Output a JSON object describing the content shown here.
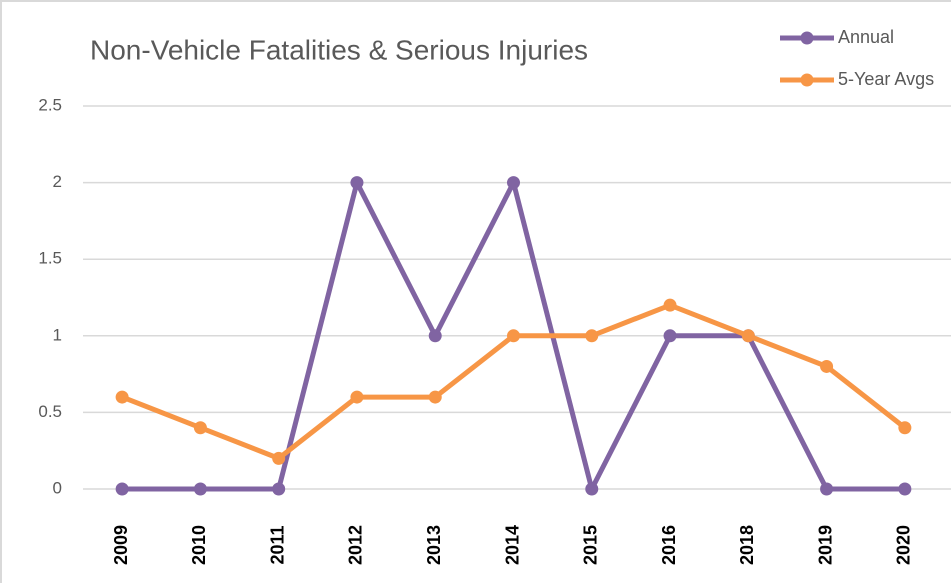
{
  "chart_data": {
    "type": "line",
    "title": "Non-Vehicle Fatalities & Serious Injuries",
    "categories": [
      "2009",
      "2010",
      "2011",
      "2012",
      "2013",
      "2014",
      "2015",
      "2016",
      "2018",
      "2019",
      "2020"
    ],
    "series": [
      {
        "name": "Annual",
        "color": "#8064a2",
        "values": [
          0,
          0,
          0,
          2,
          1,
          2,
          0,
          1,
          1,
          0,
          0
        ]
      },
      {
        "name": "5-Year Avgs",
        "color": "#f79646",
        "values": [
          0.6,
          0.4,
          0.2,
          0.6,
          0.6,
          1,
          1,
          1.2,
          1,
          0.8,
          0.4
        ]
      }
    ],
    "ylim": [
      0,
      2.5
    ],
    "yticks": [
      0,
      0.5,
      1,
      1.5,
      2,
      2.5
    ],
    "grid": true,
    "legend": "top-right"
  }
}
